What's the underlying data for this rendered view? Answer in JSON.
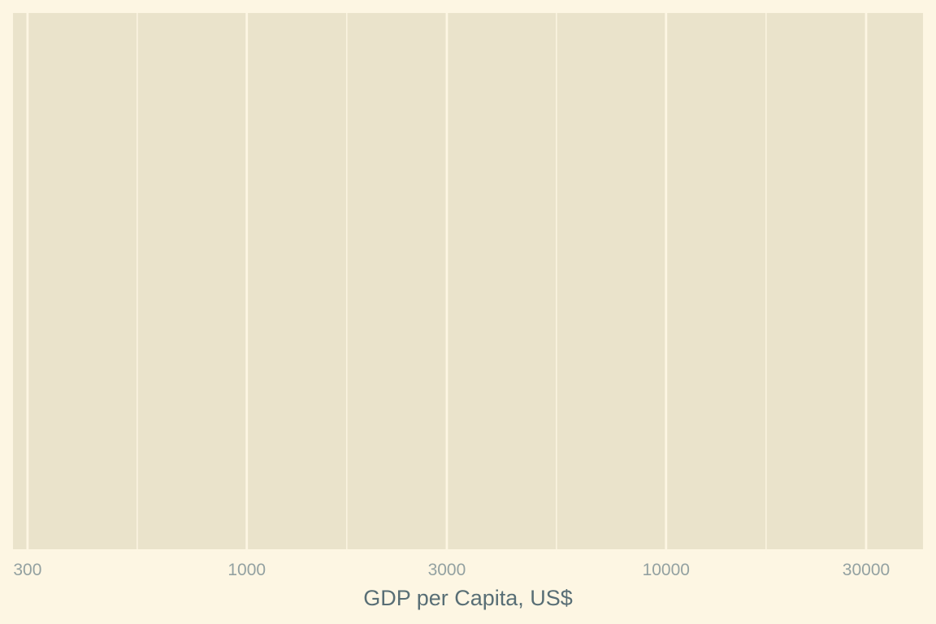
{
  "chart_data": {
    "type": "scatter",
    "title": "",
    "xlabel": "GDP per Capita, US$",
    "ylabel": "",
    "x_scale": "log10",
    "xlim": [
      277,
      41000
    ],
    "x_ticks": [
      300,
      1000,
      3000,
      10000,
      30000
    ],
    "x_tick_labels": [
      "300",
      "1000",
      "3000",
      "10000",
      "30000"
    ],
    "x_minor_ticks": [
      548,
      1732,
      5477,
      17320
    ],
    "y_ticks": [],
    "grid": true,
    "legend": "none",
    "series": [],
    "colors": {
      "background": "#fdf6e3",
      "panel": "#eae3cb",
      "grid": "#fdf6e3",
      "tick_text": "#93a1a1",
      "axis_title": "#586e75"
    }
  }
}
